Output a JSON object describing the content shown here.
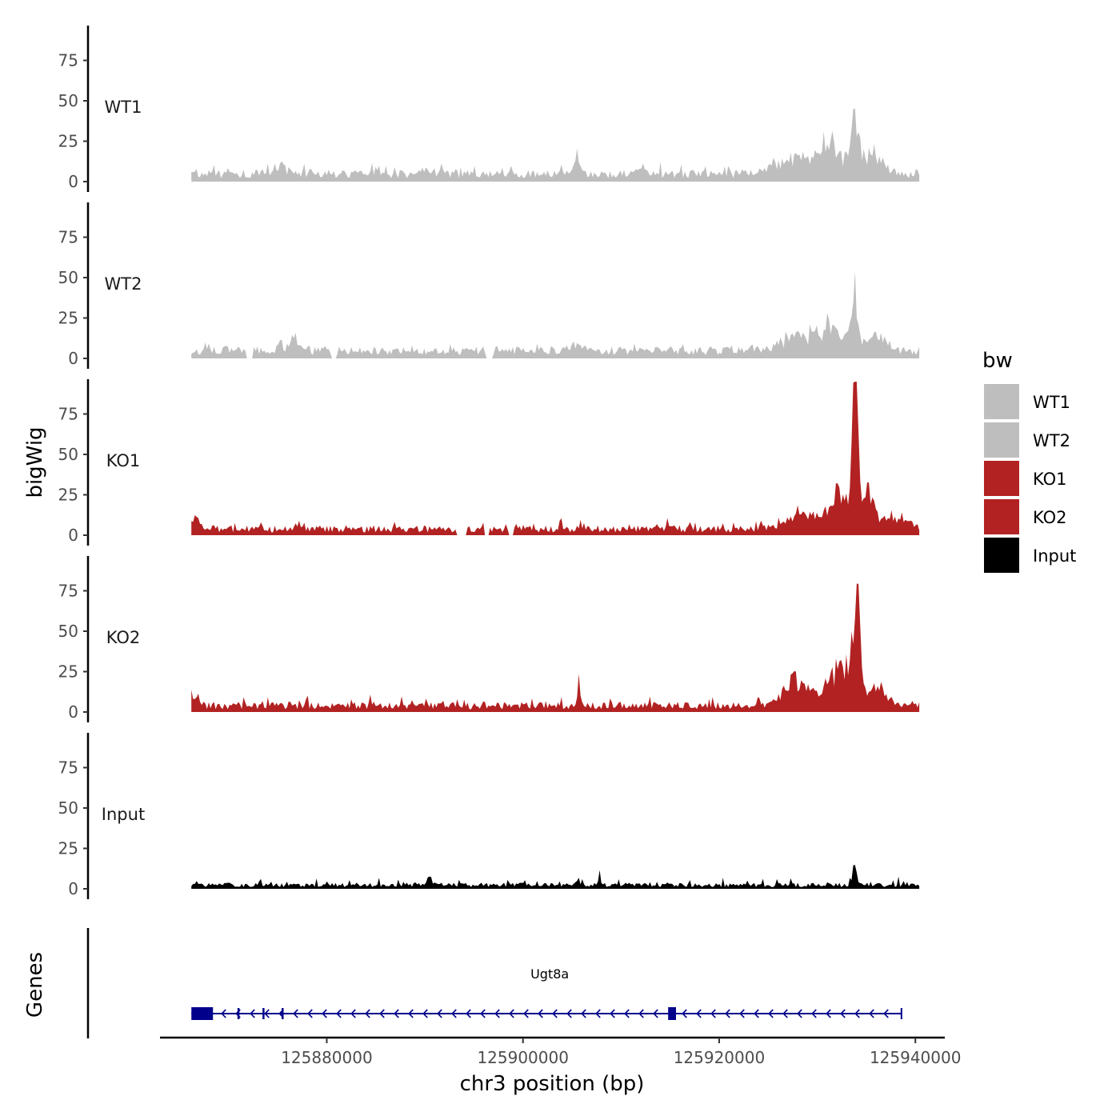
{
  "chart_data": {
    "type": "area",
    "y_axis_title": "bigWig",
    "x_axis_title": "chr3 position (bp)",
    "gene_axis_title": "Genes",
    "xlim": [
      125863000,
      125943000
    ],
    "data_xrange": [
      125866200,
      125940400
    ],
    "ylim": [
      0,
      95
    ],
    "y_ticks": [
      0,
      25,
      50,
      75
    ],
    "y_tick_labels": [
      "0",
      "25",
      "50",
      "75"
    ],
    "x_ticks": [
      125880000,
      125900000,
      125920000,
      125940000
    ],
    "x_tick_labels": [
      "125880000",
      "125900000",
      "125920000",
      "125940000"
    ],
    "legend": {
      "title": "bw",
      "entries": [
        {
          "label": "WT1",
          "color": "#bebebe"
        },
        {
          "label": "WT2",
          "color": "#bebebe"
        },
        {
          "label": "KO1",
          "color": "#b22222"
        },
        {
          "label": "KO2",
          "color": "#b22222"
        },
        {
          "label": "Input",
          "color": "#000000"
        }
      ]
    },
    "tracks": [
      {
        "name": "WT1",
        "color": "#bebebe",
        "baseline": 6,
        "noise": 5,
        "gaps": [],
        "peaks": [
          {
            "x": 125875000,
            "h": 6,
            "w": 800
          },
          {
            "x": 125890000,
            "h": 4,
            "w": 800
          },
          {
            "x": 125905500,
            "h": 9,
            "w": 400
          },
          {
            "x": 125912000,
            "h": 8,
            "w": 300
          },
          {
            "x": 125928000,
            "h": 10,
            "w": 2500
          },
          {
            "x": 125931500,
            "h": 16,
            "w": 1800
          },
          {
            "x": 125933800,
            "h": 40,
            "w": 450
          },
          {
            "x": 125935500,
            "h": 12,
            "w": 1500
          }
        ],
        "values": []
      },
      {
        "name": "WT2",
        "color": "#bebebe",
        "baseline": 6,
        "noise": 5,
        "gaps": [
          [
            125871800,
            125872400
          ],
          [
            125880500,
            125881000
          ],
          [
            125896200,
            125897000
          ]
        ],
        "peaks": [
          {
            "x": 125876500,
            "h": 5,
            "w": 1200
          },
          {
            "x": 125905000,
            "h": 4,
            "w": 1000
          },
          {
            "x": 125928000,
            "h": 9,
            "w": 2500
          },
          {
            "x": 125931500,
            "h": 14,
            "w": 1800
          },
          {
            "x": 125933800,
            "h": 30,
            "w": 450
          },
          {
            "x": 125936000,
            "h": 10,
            "w": 1500
          }
        ],
        "values": []
      },
      {
        "name": "KO1",
        "color": "#b22222",
        "baseline": 5,
        "noise": 5,
        "gaps": [
          [
            125893200,
            125894300
          ],
          [
            125896100,
            125896600
          ],
          [
            125898500,
            125899000
          ]
        ],
        "peaks": [
          {
            "x": 125866600,
            "h": 8,
            "w": 500
          },
          {
            "x": 125928500,
            "h": 12,
            "w": 2000
          },
          {
            "x": 125932500,
            "h": 22,
            "w": 1500
          },
          {
            "x": 125933900,
            "h": 82,
            "w": 380
          },
          {
            "x": 125935300,
            "h": 22,
            "w": 800
          },
          {
            "x": 125938000,
            "h": 8,
            "w": 1500
          }
        ],
        "values": []
      },
      {
        "name": "KO2",
        "color": "#b22222",
        "baseline": 5,
        "noise": 5,
        "gaps": [],
        "peaks": [
          {
            "x": 125866500,
            "h": 5,
            "w": 600
          },
          {
            "x": 125905700,
            "h": 18,
            "w": 180
          },
          {
            "x": 125928000,
            "h": 15,
            "w": 1800
          },
          {
            "x": 125932000,
            "h": 20,
            "w": 1500
          },
          {
            "x": 125933800,
            "h": 40,
            "w": 700
          },
          {
            "x": 125934100,
            "h": 40,
            "w": 300
          },
          {
            "x": 125936000,
            "h": 10,
            "w": 1500
          }
        ],
        "values": []
      },
      {
        "name": "Input",
        "color": "#000000",
        "baseline": 3,
        "noise": 4,
        "gaps": [],
        "peaks": [
          {
            "x": 125890500,
            "h": 7,
            "w": 250
          },
          {
            "x": 125905500,
            "h": 5,
            "w": 300
          },
          {
            "x": 125907800,
            "h": 6,
            "w": 200
          },
          {
            "x": 125933800,
            "h": 10,
            "w": 300
          }
        ],
        "values": []
      }
    ],
    "genes": [
      {
        "name": "Ugt8a",
        "start": 125866200,
        "end": 125938600,
        "strand": "-",
        "color": "#00008b",
        "exons": [
          [
            125866200,
            125868400
          ],
          [
            125870900,
            125871100
          ],
          [
            125873450,
            125873650
          ],
          [
            125875400,
            125875600
          ],
          [
            125914800,
            125915600
          ],
          [
            125938500,
            125938600
          ]
        ]
      }
    ]
  }
}
